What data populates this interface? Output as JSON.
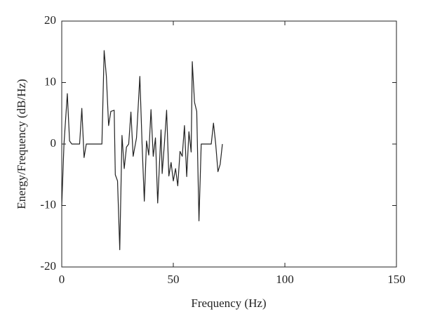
{
  "chart_data": {
    "type": "line",
    "x_label": "Frequency (Hz)",
    "y_label": "Energy/Frequency (dB/Hz)",
    "xlim": [
      0,
      150
    ],
    "xticks": [
      0,
      50,
      100,
      150
    ],
    "ylim": [
      -20,
      20
    ],
    "yticks": [
      -20,
      -10,
      0,
      10,
      20
    ],
    "grid": false,
    "color": "#222222",
    "x": [
      0,
      1,
      2.5,
      3.5,
      4.5,
      8,
      9,
      10,
      11,
      18,
      19,
      20,
      21,
      22,
      23.5,
      24,
      25,
      26,
      27,
      28,
      29,
      30,
      31,
      32,
      33.5,
      35,
      36,
      37,
      38,
      39,
      40,
      41,
      42,
      43,
      44.5,
      45,
      46,
      47,
      48,
      49,
      50,
      51,
      52,
      53,
      54,
      55,
      56,
      57,
      58,
      58.5,
      59.5,
      60.5,
      61.5,
      62.5,
      67,
      68,
      69,
      70,
      71,
      72
    ],
    "values": [
      -10,
      0,
      8.2,
      0.5,
      0,
      0,
      5.8,
      -2.2,
      0,
      0,
      15.2,
      11,
      3,
      5.3,
      5.5,
      -5,
      -6,
      -17.2,
      1.4,
      -4,
      -0.5,
      0,
      5.2,
      -2,
      1,
      11,
      0,
      -9.3,
      0.5,
      -1.8,
      5.6,
      -2,
      1,
      -9.6,
      2.3,
      -4.8,
      0,
      5.5,
      -5.2,
      -3,
      -6,
      -4,
      -6.8,
      -1.2,
      -2,
      3,
      -5.3,
      2,
      -1.3,
      13.4,
      6.8,
      5.3,
      -12.5,
      0,
      0,
      3.4,
      0,
      -4.5,
      -3.3,
      0
    ]
  }
}
